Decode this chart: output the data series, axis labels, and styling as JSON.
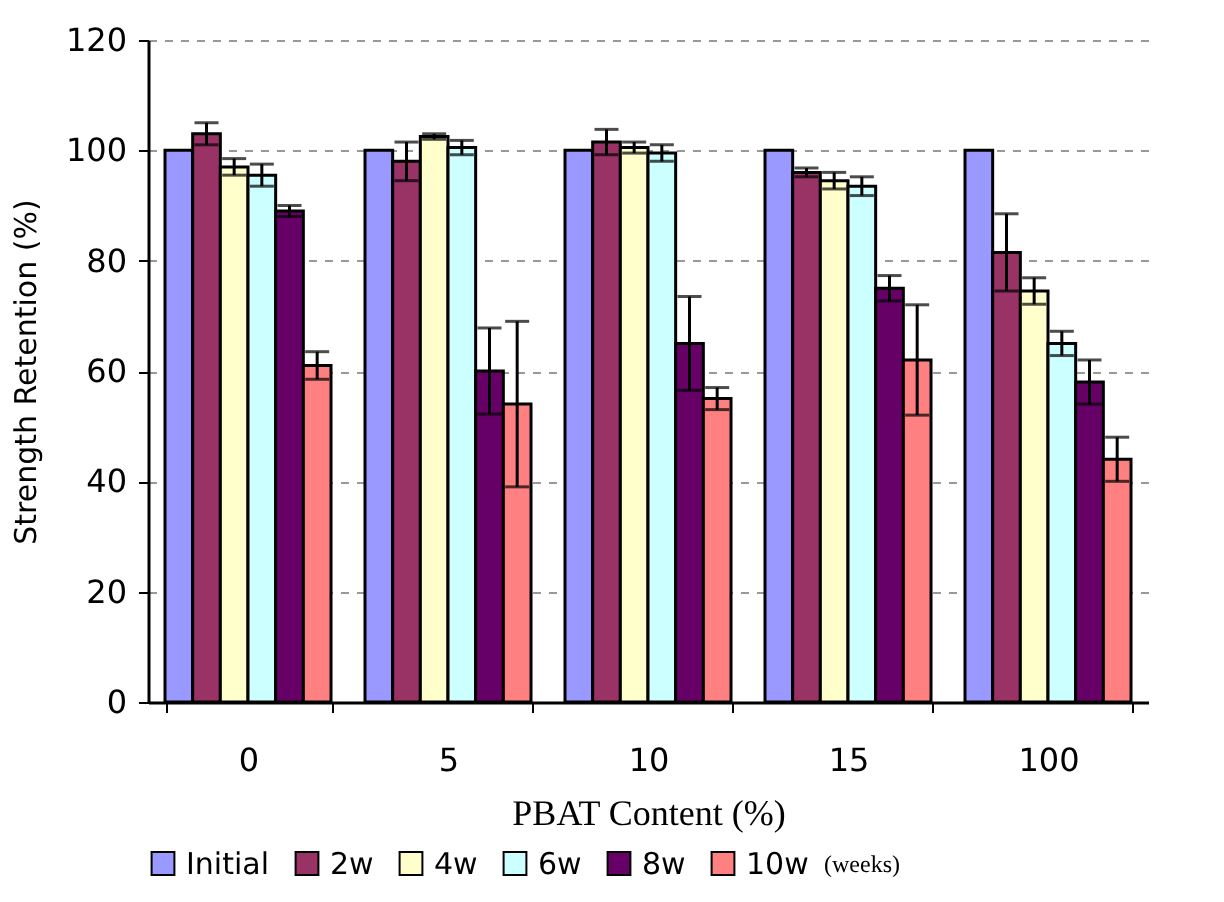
{
  "chart_data": {
    "type": "bar",
    "xlabel": "PBAT Content (%)",
    "ylabel": "Strength Retention (%)",
    "legend_title": "(weeks)",
    "categories": [
      "0",
      "5",
      "10",
      "15",
      "100"
    ],
    "series": [
      {
        "name": "Initial",
        "color": "#9999ff",
        "values": [
          100,
          100,
          100,
          100,
          100
        ]
      },
      {
        "name": "2w",
        "color": "#993366",
        "values": [
          103,
          98,
          101.5,
          96,
          81.5
        ],
        "errors": [
          2,
          3.5,
          2.3,
          0.8,
          7
        ]
      },
      {
        "name": "4w",
        "color": "#ffffcc",
        "values": [
          97,
          102.5,
          100.5,
          94.5,
          74.5
        ],
        "errors": [
          1.5,
          0.5,
          1,
          1.5,
          2.4
        ]
      },
      {
        "name": "6w",
        "color": "#ccffff",
        "values": [
          95.5,
          100.5,
          99.5,
          93.5,
          65
        ],
        "errors": [
          2,
          1.3,
          1.5,
          1.7,
          2.2
        ]
      },
      {
        "name": "8w",
        "color": "#660066",
        "values": [
          89,
          60,
          65,
          75,
          58
        ],
        "errors": [
          1,
          7.8,
          8.5,
          2.3,
          4
        ]
      },
      {
        "name": "10w",
        "color": "#ff8080",
        "values": [
          61,
          54,
          55,
          62,
          44
        ],
        "errors": [
          2.5,
          15,
          2,
          10,
          4
        ]
      }
    ],
    "ylim": [
      0,
      120
    ],
    "yticks": [
      0,
      20,
      40,
      60,
      80,
      100,
      120
    ],
    "grid": "y",
    "legend": "bottom"
  }
}
